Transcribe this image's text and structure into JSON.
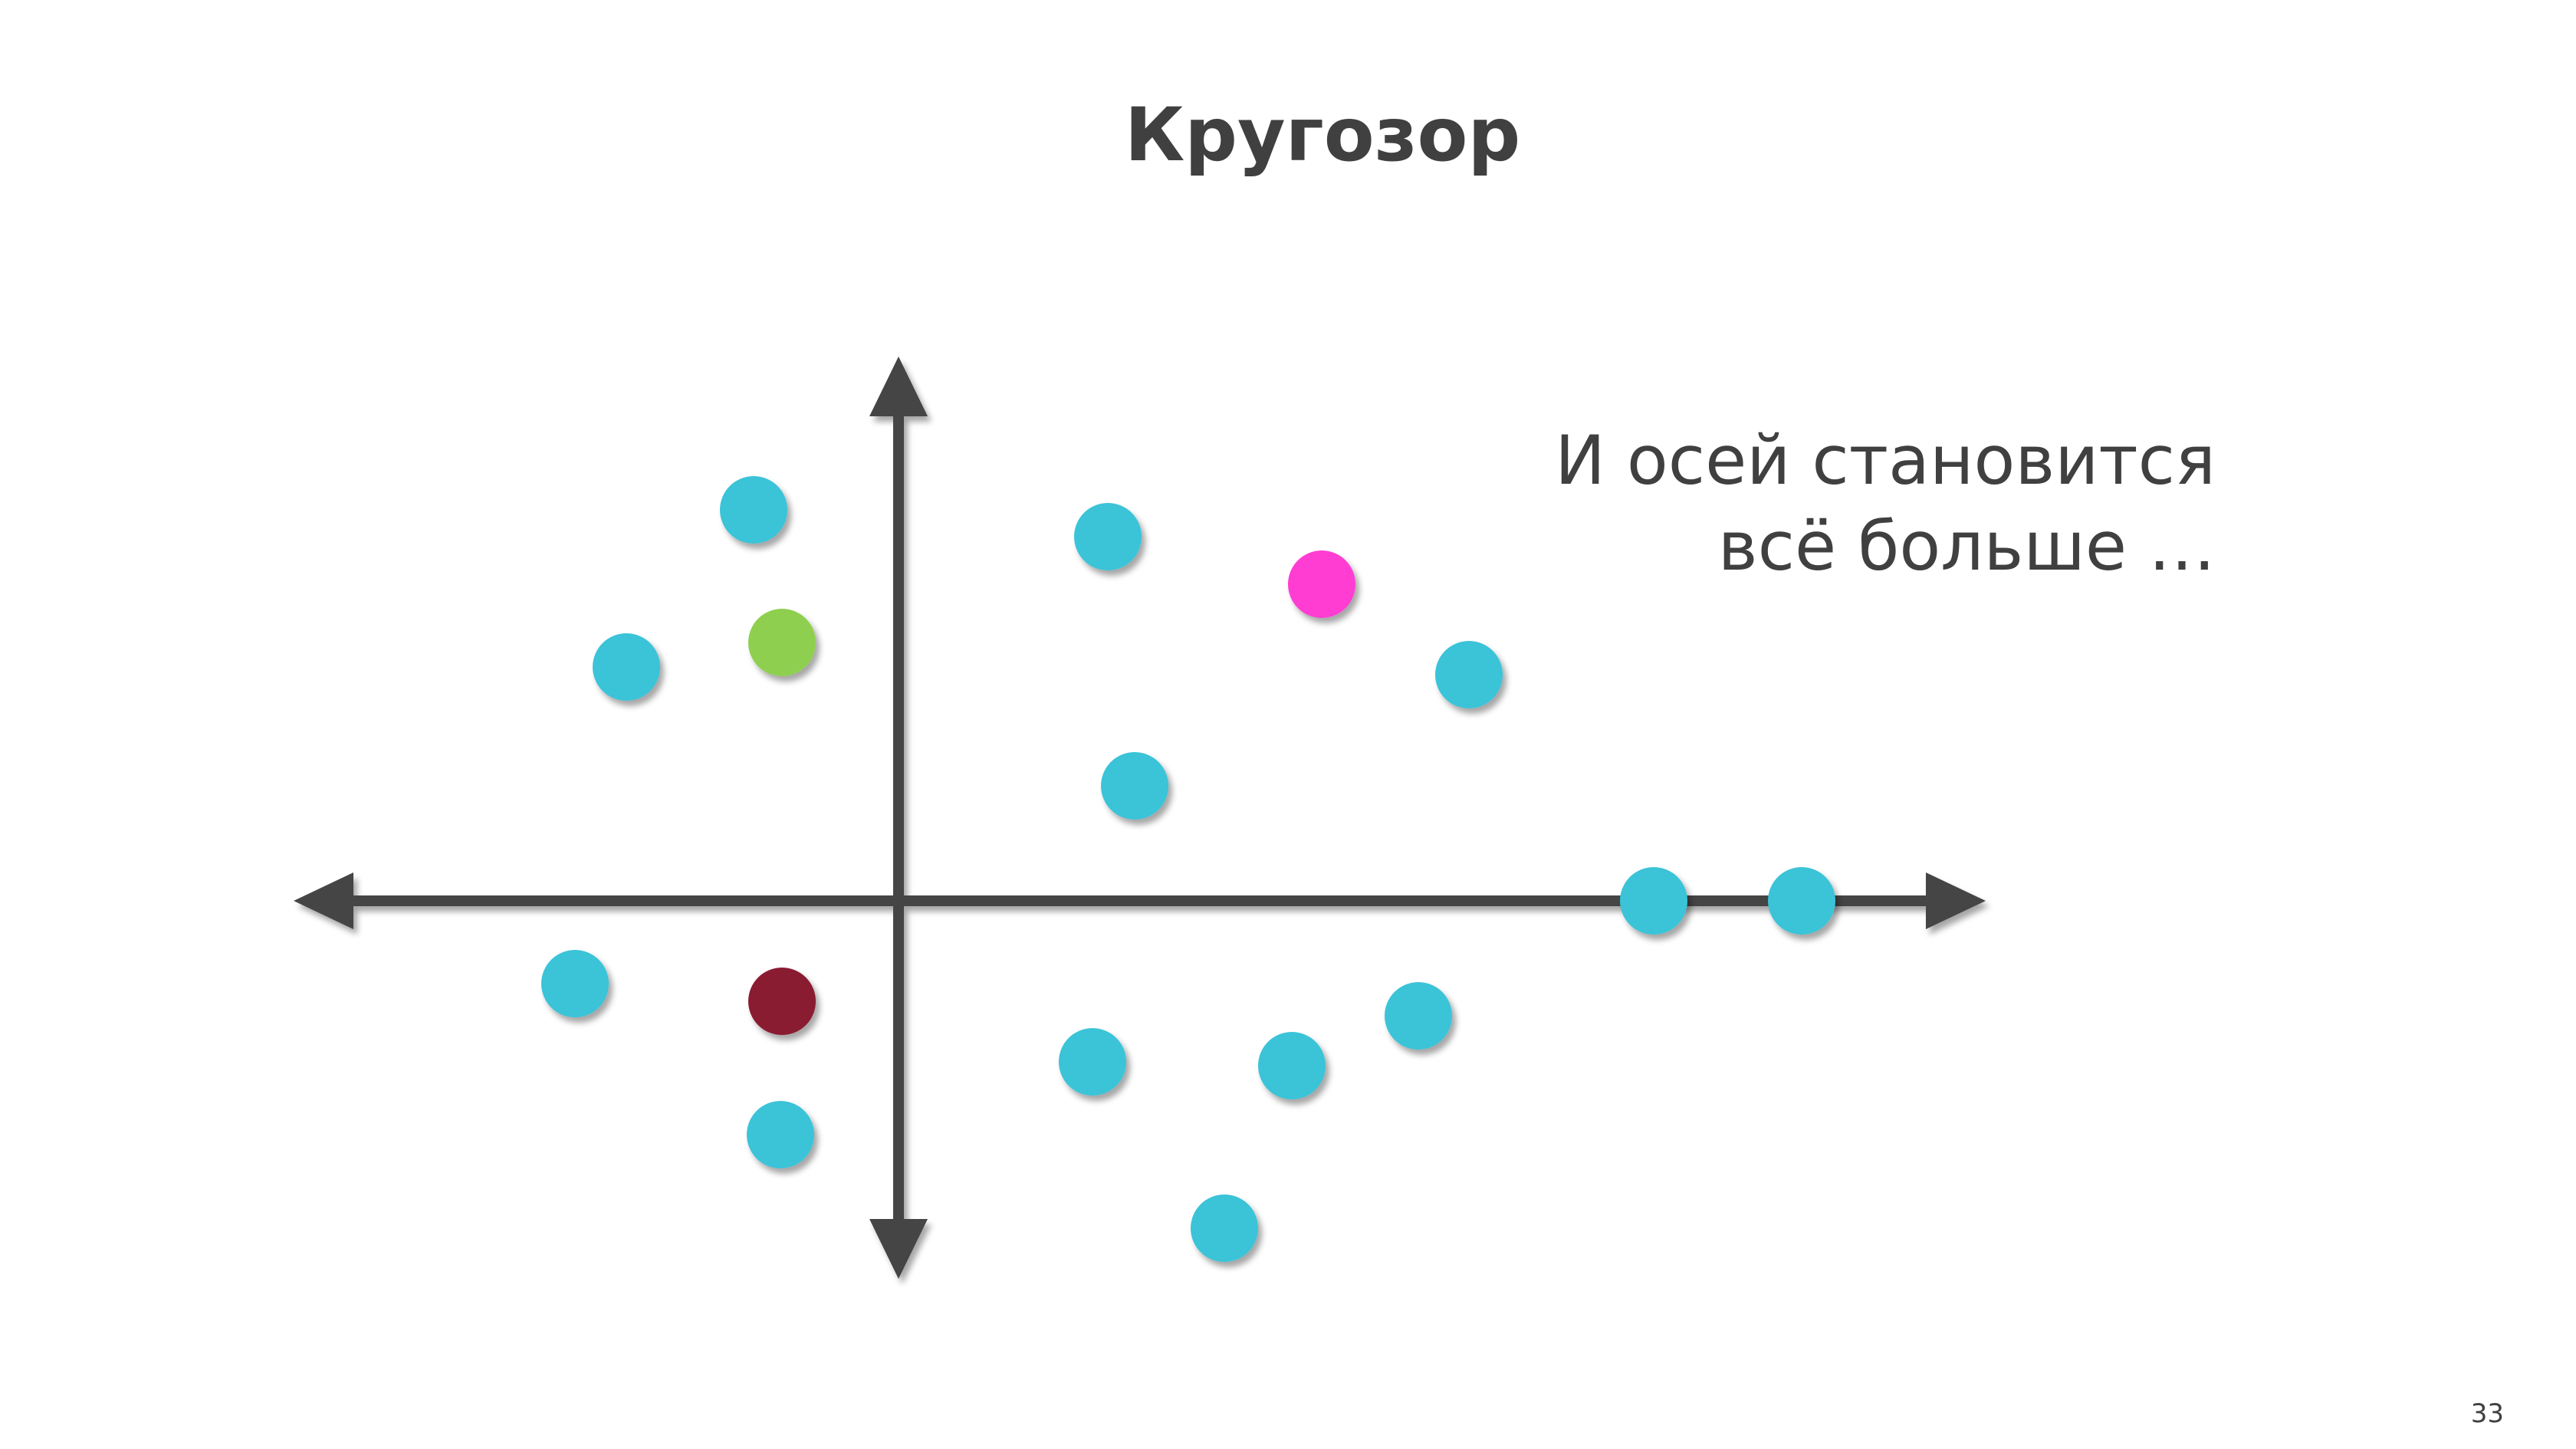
{
  "slide": {
    "title": "Кругозор",
    "caption_line1": "И осей становится",
    "caption_line2": "всё больше …",
    "page_number": "33"
  },
  "colors": {
    "axis": "#444444",
    "cyan": "#3ac3d8",
    "green": "#8ecf4f",
    "magenta": "#ff3ed2",
    "maroon": "#8a1a32"
  },
  "dots": [
    {
      "color": "cyan"
    },
    {
      "color": "cyan"
    },
    {
      "color": "cyan"
    },
    {
      "color": "green"
    },
    {
      "color": "magenta"
    },
    {
      "color": "cyan"
    },
    {
      "color": "cyan"
    },
    {
      "color": "cyan"
    },
    {
      "color": "cyan"
    },
    {
      "color": "cyan"
    },
    {
      "color": "maroon"
    },
    {
      "color": "cyan"
    },
    {
      "color": "cyan"
    },
    {
      "color": "cyan"
    },
    {
      "color": "cyan"
    },
    {
      "color": "cyan"
    }
  ]
}
